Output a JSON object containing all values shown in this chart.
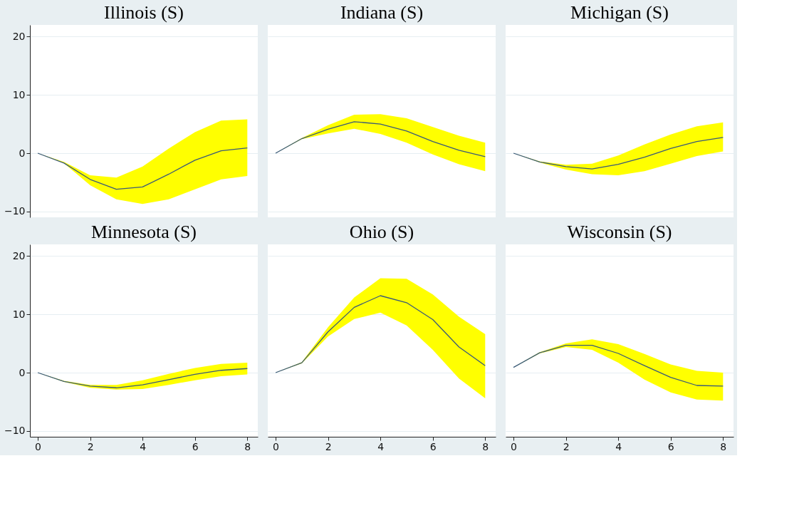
{
  "chart_data": [
    {
      "type": "line",
      "title": "Illinois (S)",
      "x": [
        0,
        1,
        2,
        3,
        4,
        5,
        6,
        7,
        8
      ],
      "xlim": [
        -0.3,
        8.4
      ],
      "xticks": [
        0,
        2,
        4,
        6,
        8
      ],
      "ylim": [
        -11,
        22
      ],
      "yticks": [
        -10,
        0,
        10,
        20
      ],
      "grid": "y",
      "tick_labels": "y",
      "series": [
        {
          "color": "#3a5a78",
          "values": [
            0,
            -1.7,
            -4.5,
            -6.2,
            -5.8,
            -3.6,
            -1.2,
            0.4,
            0.9
          ],
          "lower": [
            0,
            -1.7,
            -5.5,
            -7.9,
            -8.7,
            -7.9,
            -6.2,
            -4.5,
            -3.9
          ],
          "upper": [
            0,
            -1.5,
            -3.8,
            -4.2,
            -2.3,
            0.8,
            3.6,
            5.6,
            5.8
          ]
        }
      ]
    },
    {
      "type": "line",
      "title": "Indiana (S)",
      "x": [
        0,
        1,
        2,
        3,
        4,
        5,
        6,
        7,
        8
      ],
      "xlim": [
        -0.3,
        8.4
      ],
      "xticks": [
        0,
        2,
        4,
        6,
        8
      ],
      "ylim": [
        -11,
        22
      ],
      "yticks": [
        -10,
        0,
        10,
        20
      ],
      "grid": "y",
      "tick_labels": false,
      "series": [
        {
          "color": "#3a5a78",
          "values": [
            0,
            2.5,
            4.1,
            5.4,
            5.0,
            3.8,
            2.0,
            0.5,
            -0.6
          ],
          "lower": [
            0,
            2.4,
            3.4,
            4.2,
            3.3,
            1.8,
            -0.2,
            -1.9,
            -3.1
          ],
          "upper": [
            0,
            2.6,
            4.8,
            6.6,
            6.7,
            6.0,
            4.5,
            3.0,
            1.8
          ]
        }
      ]
    },
    {
      "type": "line",
      "title": "Michigan (S)",
      "x": [
        0,
        1,
        2,
        3,
        4,
        5,
        6,
        7,
        8
      ],
      "xlim": [
        -0.3,
        8.4
      ],
      "xticks": [
        0,
        2,
        4,
        6,
        8
      ],
      "ylim": [
        -11,
        22
      ],
      "yticks": [
        -10,
        0,
        10,
        20
      ],
      "grid": "y",
      "tick_labels": false,
      "series": [
        {
          "color": "#3a5a78",
          "values": [
            0,
            -1.5,
            -2.3,
            -2.7,
            -1.9,
            -0.7,
            0.8,
            2.0,
            2.7
          ],
          "lower": [
            0,
            -1.6,
            -2.8,
            -3.6,
            -3.8,
            -3.1,
            -1.8,
            -0.5,
            0.3
          ],
          "upper": [
            0,
            -1.4,
            -2.0,
            -1.8,
            -0.4,
            1.5,
            3.2,
            4.6,
            5.3
          ]
        }
      ]
    },
    {
      "type": "line",
      "title": "Minnesota (S)",
      "x": [
        0,
        1,
        2,
        3,
        4,
        5,
        6,
        7,
        8
      ],
      "xlim": [
        -0.3,
        8.4
      ],
      "xticks": [
        0,
        2,
        4,
        6,
        8
      ],
      "ylim": [
        -11,
        22
      ],
      "yticks": [
        -10,
        0,
        10,
        20
      ],
      "grid": "y",
      "series": [
        {
          "color": "#3a5a78",
          "values": [
            0,
            -1.5,
            -2.3,
            -2.6,
            -2.1,
            -1.2,
            -0.3,
            0.4,
            0.7
          ],
          "lower": [
            0,
            -1.6,
            -2.6,
            -2.9,
            -2.8,
            -2.1,
            -1.3,
            -0.6,
            -0.3
          ],
          "upper": [
            0,
            -1.4,
            -2.1,
            -2.1,
            -1.3,
            -0.2,
            0.8,
            1.5,
            1.7
          ]
        }
      ]
    },
    {
      "type": "line",
      "title": "Ohio (S)",
      "x": [
        0,
        1,
        2,
        3,
        4,
        5,
        6,
        7,
        8
      ],
      "xlim": [
        -0.3,
        8.4
      ],
      "xticks": [
        0,
        2,
        4,
        6,
        8
      ],
      "ylim": [
        -11,
        22
      ],
      "yticks": [
        -10,
        0,
        10,
        20
      ],
      "grid": "y",
      "tick_labels": "x",
      "series": [
        {
          "color": "#3a5a78",
          "values": [
            0,
            1.7,
            7.0,
            11.2,
            13.2,
            12.0,
            9.1,
            4.4,
            1.2
          ],
          "lower": [
            0,
            1.6,
            6.2,
            9.2,
            10.3,
            8.1,
            3.9,
            -1.0,
            -4.4
          ],
          "upper": [
            0,
            1.8,
            7.8,
            12.9,
            16.2,
            16.1,
            13.4,
            9.6,
            6.6
          ]
        }
      ]
    },
    {
      "type": "line",
      "title": "Wisconsin (S)",
      "x": [
        0,
        1,
        2,
        3,
        4,
        5,
        6,
        7,
        8
      ],
      "xlim": [
        -0.3,
        8.4
      ],
      "xticks": [
        0,
        2,
        4,
        6,
        8
      ],
      "ylim": [
        -11,
        22
      ],
      "yticks": [
        -10,
        0,
        10,
        20
      ],
      "grid": "y",
      "tick_labels": "x",
      "series": [
        {
          "color": "#3a5a78",
          "values": [
            0.9,
            3.4,
            4.7,
            4.7,
            3.3,
            1.2,
            -0.8,
            -2.2,
            -2.3
          ],
          "lower": [
            0.9,
            3.3,
            4.4,
            3.9,
            1.7,
            -1.2,
            -3.4,
            -4.6,
            -4.8
          ],
          "upper": [
            0.9,
            3.5,
            5.0,
            5.7,
            4.9,
            3.2,
            1.4,
            0.3,
            0.0
          ]
        }
      ]
    }
  ]
}
